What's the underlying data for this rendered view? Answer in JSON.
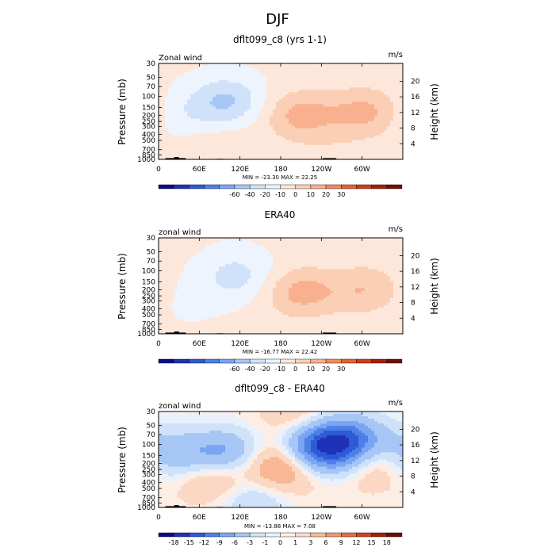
{
  "chart_data": {
    "type": "heatmap",
    "title": "DJF",
    "panels": [
      {
        "title": "dflt099_c8 (yrs 1-1)",
        "left_label": "Zonal wind",
        "right_label": "m/s",
        "ylabel": "Pressure (mb)",
        "y2label": "Height (km)",
        "xticks": [
          "0",
          "60E",
          "120E",
          "180",
          "120W",
          "60W"
        ],
        "yticks": [
          "30",
          "50",
          "70",
          "100",
          "150",
          "200",
          "250",
          "300",
          "400",
          "500",
          "700",
          "850",
          "1000"
        ],
        "y2ticks": [
          "20",
          "16",
          "12",
          "8",
          "4"
        ],
        "stats": "MIN = -23.30   MAX =  22.25",
        "levels": [
          -60,
          -40,
          -20,
          -10,
          0,
          10,
          20,
          30
        ],
        "scale": "main",
        "features": [
          {
            "lon": 100,
            "p": 120,
            "v": -23
          },
          {
            "lon": 35,
            "p": 200,
            "v": -8
          },
          {
            "lon": 210,
            "p": 200,
            "v": 22
          },
          {
            "lon": 305,
            "p": 180,
            "v": 21
          },
          {
            "lon": 85,
            "p": 650,
            "v": 7
          },
          {
            "lon": 255,
            "p": 800,
            "v": 4
          }
        ],
        "background": 2
      },
      {
        "title": "ERA40",
        "left_label": "zonal wind",
        "right_label": "m/s",
        "ylabel": "Pressure (mb)",
        "y2label": "Height (km)",
        "xticks": [
          "0",
          "60E",
          "120E",
          "180",
          "120W",
          "60W"
        ],
        "yticks": [
          "30",
          "50",
          "70",
          "100",
          "150",
          "200",
          "250",
          "300",
          "400",
          "500",
          "700",
          "850",
          "1000"
        ],
        "y2ticks": [
          "20",
          "16",
          "12",
          "8",
          "4"
        ],
        "stats": "MIN = -16.77   MAX =  22.42",
        "levels": [
          -60,
          -40,
          -20,
          -10,
          0,
          10,
          20,
          30
        ],
        "scale": "main",
        "features": [
          {
            "lon": 115,
            "p": 120,
            "v": -16
          },
          {
            "lon": 210,
            "p": 220,
            "v": 22
          },
          {
            "lon": 305,
            "p": 200,
            "v": 17
          },
          {
            "lon": 40,
            "p": 300,
            "v": -4
          }
        ],
        "background": 2
      },
      {
        "title": "dflt099_c8 - ERA40",
        "left_label": "zonal wind",
        "right_label": "m/s",
        "ylabel": "Pressure (mb)",
        "y2label": "Height (km)",
        "xticks": [
          "0",
          "60E",
          "120E",
          "180",
          "120W",
          "60W"
        ],
        "yticks": [
          "30",
          "50",
          "70",
          "100",
          "150",
          "200",
          "250",
          "300",
          "400",
          "500",
          "700",
          "850",
          "1000"
        ],
        "y2ticks": [
          "20",
          "16",
          "12",
          "8",
          "4"
        ],
        "stats": "MIN = -13.88   MAX =   7.08",
        "levels": [
          -18,
          -15,
          -12,
          -9,
          -6,
          -3,
          -1,
          0,
          1,
          3,
          6,
          9,
          12,
          15,
          18
        ],
        "scale": "diff",
        "features": [
          {
            "lon": 240,
            "p": 110,
            "v": -14
          },
          {
            "lon": 285,
            "p": 90,
            "v": -10
          },
          {
            "lon": 95,
            "p": 150,
            "v": -9
          },
          {
            "lon": 15,
            "p": 150,
            "v": -6
          },
          {
            "lon": 180,
            "p": 230,
            "v": 7
          },
          {
            "lon": 85,
            "p": 300,
            "v": 6
          },
          {
            "lon": 320,
            "p": 180,
            "v": 5
          },
          {
            "lon": 140,
            "p": 700,
            "v": -4
          },
          {
            "lon": 210,
            "p": 40,
            "v": 3
          }
        ],
        "background": 0.5
      }
    ],
    "colorbar_main": [
      "-60",
      "-40",
      "-20",
      "-10",
      "0",
      "10",
      "20",
      "30"
    ],
    "colorbar_diff": [
      "-18",
      "-15",
      "-12",
      "-9",
      "-6",
      "-3",
      "-1",
      "0",
      "1",
      "3",
      "6",
      "9",
      "12",
      "15",
      "18"
    ],
    "colors": {
      "main": [
        "#0a0a8a",
        "#1f31b8",
        "#2f5ad6",
        "#4c7fe8",
        "#7aa5f3",
        "#a6c6f6",
        "#cfe2fa",
        "#eef4fd",
        "#fde7da",
        "#fbcfb5",
        "#f8b08f",
        "#f3895f",
        "#e8602f",
        "#cf3d15",
        "#a32008",
        "#6e0e04"
      ],
      "diff": [
        "#0a0a8a",
        "#1f31b8",
        "#2f5ad6",
        "#4c7fe8",
        "#7aa5f3",
        "#a6c6f6",
        "#cfe2fa",
        "#e8f1fc",
        "#fdeee5",
        "#fbd8c3",
        "#f8b896",
        "#f3956a",
        "#e86c3c",
        "#cf4519",
        "#a32008",
        "#6e0e04"
      ]
    }
  }
}
